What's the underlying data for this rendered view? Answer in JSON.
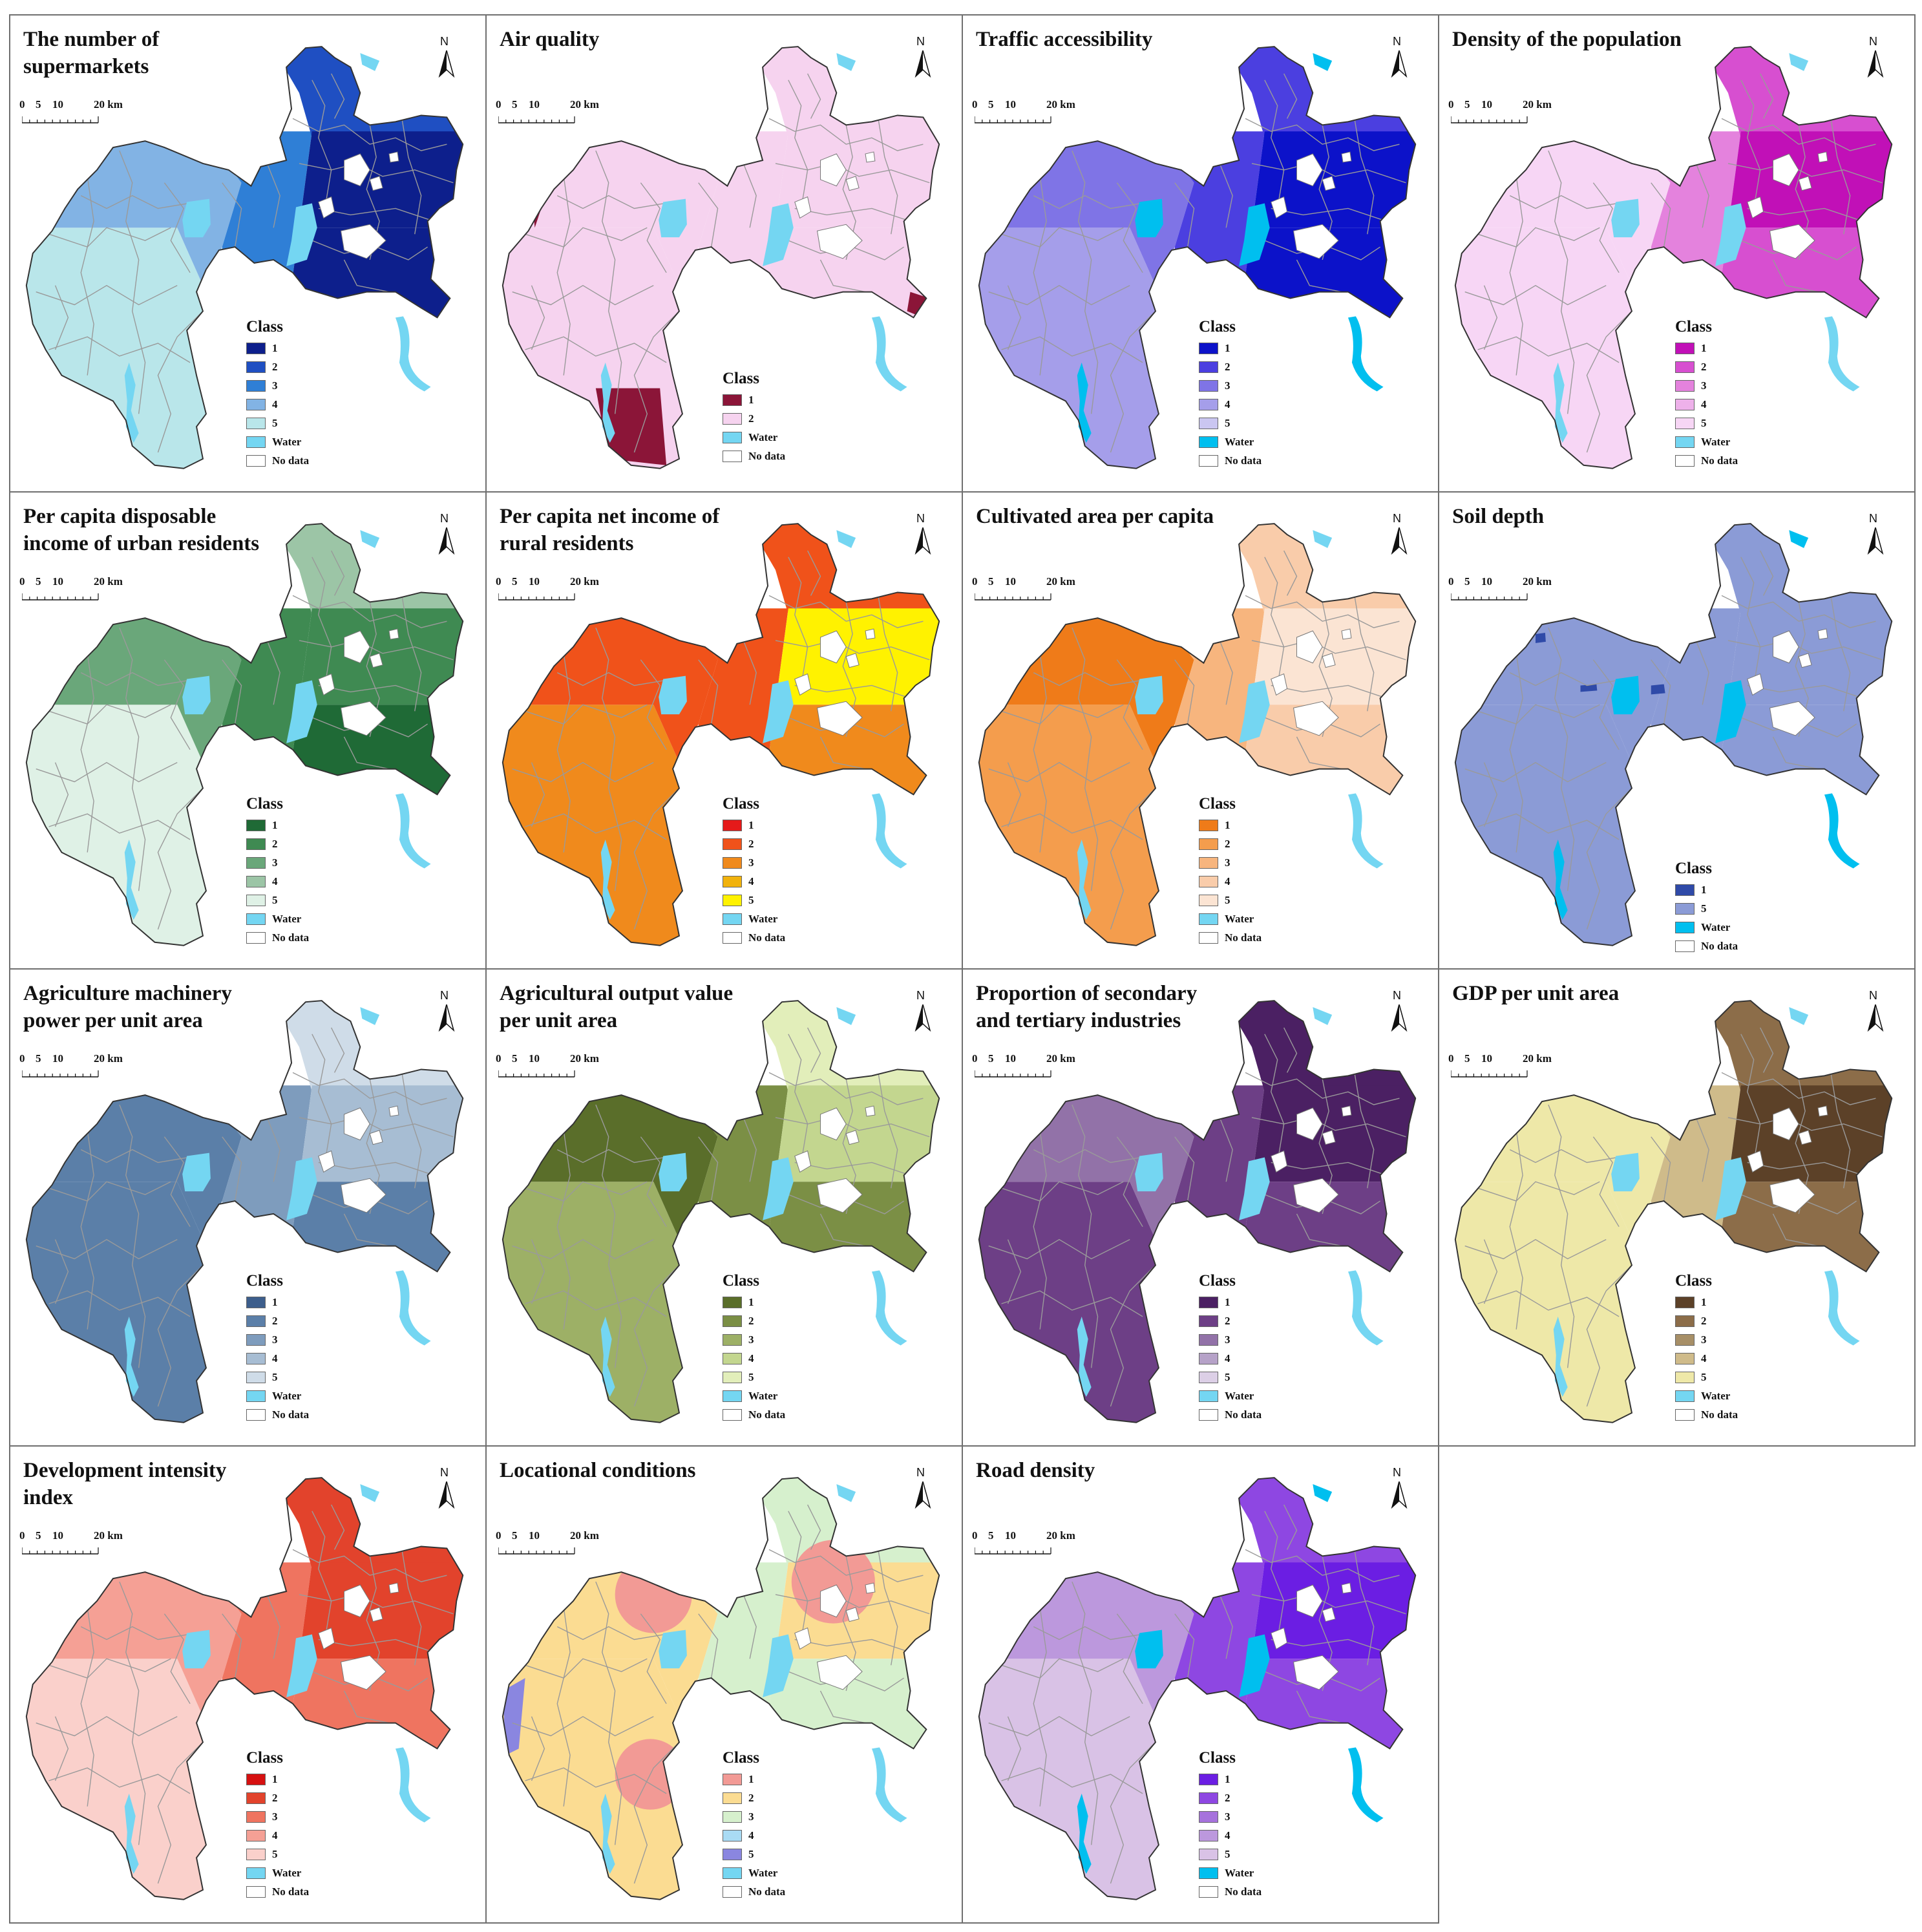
{
  "colors": {
    "water": "#74d6f2",
    "no_data": "#ffffff",
    "boundary": "#9a9a9a",
    "outline": "#333333"
  },
  "scale_labels": [
    "0",
    "5",
    "10",
    "20 km"
  ],
  "north_label": "N",
  "legend_title": "Class",
  "water_label": "Water",
  "no_data_label": "No data",
  "panels": [
    {
      "id": "supermarkets",
      "title": [
        "The number of",
        "supermarkets"
      ],
      "classes": [
        {
          "label": "1",
          "color": "#0d1f8c"
        },
        {
          "label": "2",
          "color": "#1f4fc2"
        },
        {
          "label": "3",
          "color": "#2f7fd6"
        },
        {
          "label": "4",
          "color": "#82b3e4"
        },
        {
          "label": "5",
          "color": "#b9e6ea"
        }
      ],
      "zones": {
        "southwest": 4,
        "west": 3,
        "center": 2,
        "east": 0,
        "north": 1,
        "southeast": 0
      }
    },
    {
      "id": "air-quality",
      "title": [
        "Air quality"
      ],
      "classes": [
        {
          "label": "1",
          "color": "#8b1538"
        },
        {
          "label": "2",
          "color": "#f6d3ef"
        }
      ],
      "zones": {
        "southwest": 1,
        "west": 1,
        "center": 1,
        "east": 1,
        "north": 1,
        "southeast": 1
      }
    },
    {
      "id": "traffic",
      "title": [
        "Traffic accessibility"
      ],
      "classes": [
        {
          "label": "1",
          "color": "#0c12c9"
        },
        {
          "label": "2",
          "color": "#4b3fe0"
        },
        {
          "label": "3",
          "color": "#7f74e6"
        },
        {
          "label": "4",
          "color": "#a59eea"
        },
        {
          "label": "5",
          "color": "#cac6f1"
        }
      ],
      "zones": {
        "southwest": 3,
        "west": 2,
        "center": 1,
        "east": 0,
        "north": 1,
        "southeast": 0
      }
    },
    {
      "id": "pop-density",
      "title": [
        "Density of the population"
      ],
      "classes": [
        {
          "label": "1",
          "color": "#c110b7"
        },
        {
          "label": "2",
          "color": "#d74fd0"
        },
        {
          "label": "3",
          "color": "#e482dd"
        },
        {
          "label": "4",
          "color": "#eeb1ea"
        },
        {
          "label": "5",
          "color": "#f7d6f5"
        }
      ],
      "zones": {
        "southwest": 4,
        "west": 4,
        "center": 2,
        "east": 0,
        "north": 1,
        "southeast": 1
      }
    },
    {
      "id": "urban-income",
      "title": [
        "Per capita disposable",
        "income of urban residents"
      ],
      "classes": [
        {
          "label": "1",
          "color": "#1f6a36"
        },
        {
          "label": "2",
          "color": "#3f8a52"
        },
        {
          "label": "3",
          "color": "#6aa77a"
        },
        {
          "label": "4",
          "color": "#9cc5a6"
        },
        {
          "label": "5",
          "color": "#dff1e6"
        }
      ],
      "zones": {
        "southwest": 4,
        "west": 2,
        "center": 1,
        "east": 1,
        "north": 3,
        "southeast": 0
      }
    },
    {
      "id": "rural-income",
      "title": [
        "Per capita net income of",
        "rural residents"
      ],
      "classes": [
        {
          "label": "1",
          "color": "#e51a1a"
        },
        {
          "label": "2",
          "color": "#f0521a"
        },
        {
          "label": "3",
          "color": "#f08a1c"
        },
        {
          "label": "4",
          "color": "#f1b20c"
        },
        {
          "label": "5",
          "color": "#fff200"
        }
      ],
      "zones": {
        "southwest": 2,
        "west": 1,
        "center": 1,
        "east": 4,
        "north": 1,
        "southeast": 2
      }
    },
    {
      "id": "cultivated",
      "title": [
        "Cultivated area per capita"
      ],
      "classes": [
        {
          "label": "1",
          "color": "#ef7b19"
        },
        {
          "label": "2",
          "color": "#f49d4d"
        },
        {
          "label": "3",
          "color": "#f7b57e"
        },
        {
          "label": "4",
          "color": "#f9ccaa"
        },
        {
          "label": "5",
          "color": "#fbe4d3"
        }
      ],
      "zones": {
        "southwest": 1,
        "west": 0,
        "center": 2,
        "east": 4,
        "north": 3,
        "southeast": 3
      }
    },
    {
      "id": "soil-depth",
      "title": [
        "Soil depth"
      ],
      "classes": [
        {
          "label": "1",
          "color": "#2f4aa8"
        },
        {
          "label": "5",
          "color": "#8b9bd6"
        },
        {
          "label": "Water",
          "color": "#00bfef"
        }
      ],
      "zones": {
        "southwest": 1,
        "west": 1,
        "center": 1,
        "east": 1,
        "north": 1,
        "southeast": 1
      }
    },
    {
      "id": "ag-machinery",
      "title": [
        "Agriculture machinery",
        "power per unit area"
      ],
      "classes": [
        {
          "label": "1",
          "color": "#3d5e8c"
        },
        {
          "label": "2",
          "color": "#5b7fa8"
        },
        {
          "label": "3",
          "color": "#7e9cbd"
        },
        {
          "label": "4",
          "color": "#a7bdd3"
        },
        {
          "label": "5",
          "color": "#cfdce8"
        }
      ],
      "zones": {
        "southwest": 1,
        "west": 1,
        "center": 2,
        "east": 3,
        "north": 4,
        "southeast": 1
      }
    },
    {
      "id": "ag-output",
      "title": [
        "Agricultural output value",
        "per unit area"
      ],
      "classes": [
        {
          "label": "1",
          "color": "#5a6e2a"
        },
        {
          "label": "2",
          "color": "#7b8f45"
        },
        {
          "label": "3",
          "color": "#9db066"
        },
        {
          "label": "4",
          "color": "#c3d68f"
        },
        {
          "label": "5",
          "color": "#e2eeba"
        }
      ],
      "zones": {
        "southwest": 2,
        "west": 0,
        "center": 1,
        "east": 3,
        "north": 4,
        "southeast": 1
      }
    },
    {
      "id": "industries",
      "title": [
        "Proportion of secondary",
        "and tertiary industries"
      ],
      "classes": [
        {
          "label": "1",
          "color": "#4b2063"
        },
        {
          "label": "2",
          "color": "#6d3f86"
        },
        {
          "label": "3",
          "color": "#9272a8"
        },
        {
          "label": "4",
          "color": "#b6a2c8"
        },
        {
          "label": "5",
          "color": "#dccfe6"
        }
      ],
      "zones": {
        "southwest": 1,
        "west": 2,
        "center": 1,
        "east": 0,
        "north": 0,
        "southeast": 1
      }
    },
    {
      "id": "gdp-area",
      "title": [
        "GDP per unit area"
      ],
      "classes": [
        {
          "label": "1",
          "color": "#5c4128"
        },
        {
          "label": "2",
          "color": "#8c6d49"
        },
        {
          "label": "3",
          "color": "#a78f67"
        },
        {
          "label": "4",
          "color": "#cfbb8a"
        },
        {
          "label": "5",
          "color": "#eee8a8"
        }
      ],
      "zones": {
        "southwest": 4,
        "west": 4,
        "center": 3,
        "east": 0,
        "north": 1,
        "southeast": 1
      }
    },
    {
      "id": "dev-intensity",
      "title": [
        "Development intensity",
        "index"
      ],
      "classes": [
        {
          "label": "1",
          "color": "#d61010"
        },
        {
          "label": "2",
          "color": "#e2432c"
        },
        {
          "label": "3",
          "color": "#ef7460"
        },
        {
          "label": "4",
          "color": "#f5a095"
        },
        {
          "label": "5",
          "color": "#fad0cb"
        }
      ],
      "zones": {
        "southwest": 4,
        "west": 3,
        "center": 2,
        "east": 1,
        "north": 1,
        "southeast": 2
      }
    },
    {
      "id": "locational",
      "title": [
        "Locational conditions"
      ],
      "classes": [
        {
          "label": "1",
          "color": "#f29a95"
        },
        {
          "label": "2",
          "color": "#fbdc92"
        },
        {
          "label": "3",
          "color": "#d6f0cd"
        },
        {
          "label": "4",
          "color": "#a9dbf4"
        },
        {
          "label": "5",
          "color": "#8a86e0"
        }
      ],
      "zones": {
        "southwest": 1,
        "west": 1,
        "center": 2,
        "east": 1,
        "north": 2,
        "southeast": 2
      }
    },
    {
      "id": "road-density",
      "title": [
        "Road density"
      ],
      "classes": [
        {
          "label": "1",
          "color": "#6b1ee3"
        },
        {
          "label": "2",
          "color": "#8e47e2"
        },
        {
          "label": "3",
          "color": "#a672dc"
        },
        {
          "label": "4",
          "color": "#bc98dd"
        },
        {
          "label": "5",
          "color": "#d9c2e6"
        }
      ],
      "zones": {
        "southwest": 4,
        "west": 3,
        "center": 1,
        "east": 0,
        "north": 1,
        "southeast": 1
      }
    }
  ]
}
